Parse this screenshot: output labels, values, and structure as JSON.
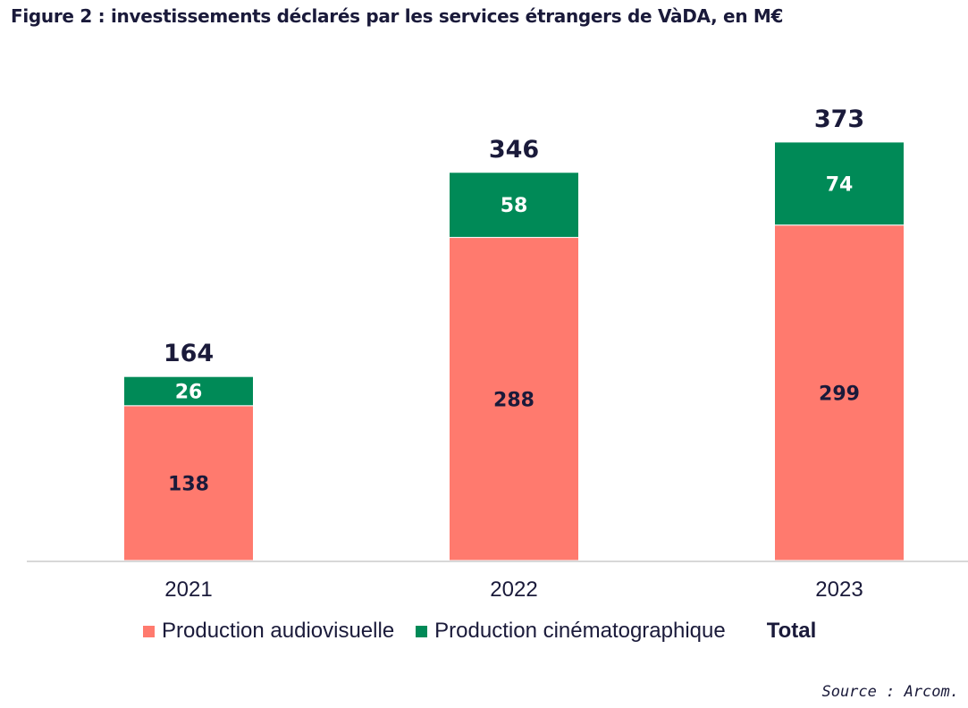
{
  "title": "Figure 2 : investissements déclarés par les services étrangers de VàDA, en M€",
  "legend": {
    "audiovisuel_label": "Production audiovisuelle",
    "cinema_label": "Production cinématographique",
    "total_label": "Total"
  },
  "source": "Source : Arcom.",
  "colors": {
    "audiovisuel": "#ff7a6e",
    "cinema": "#008a57",
    "text_dark": "#1a1a3a"
  },
  "chart_data": {
    "type": "bar",
    "stacked": true,
    "title": "Figure 2 : investissements déclarés par les services étrangers de VàDA, en M€",
    "categories": [
      "2021",
      "2022",
      "2023"
    ],
    "series": [
      {
        "name": "Production audiovisuelle",
        "values": [
          138,
          288,
          299
        ]
      },
      {
        "name": "Production cinématographique",
        "values": [
          26,
          58,
          74
        ]
      }
    ],
    "totals": [
      164,
      346,
      373
    ],
    "ylim": [
      0,
      400
    ],
    "grid": false,
    "legend_position": "bottom"
  }
}
